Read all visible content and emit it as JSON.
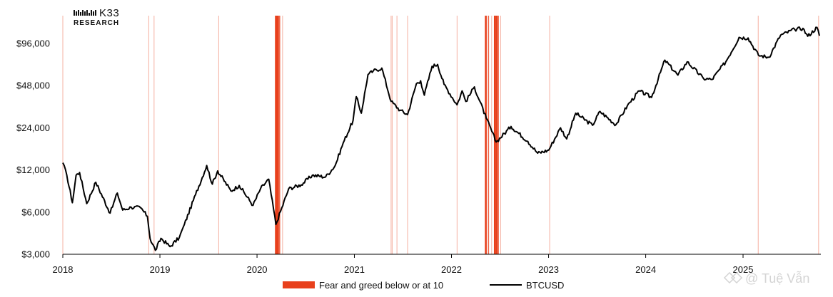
{
  "brand": {
    "name": "K33",
    "subtitle": "RESEARCH"
  },
  "watermark": "@ Tuệ Vẫn",
  "colors": {
    "line": "#000000",
    "fear_band": "#e8401c",
    "fear_band_thin": "#f4a898"
  },
  "chart_data": {
    "type": "line",
    "title": "",
    "xlabel": "",
    "ylabel": "",
    "y_scale": "log2",
    "ylim": [
      3000,
      130000
    ],
    "xlim": [
      "2018-01-01",
      "2025-10-15"
    ],
    "y_ticks": [
      {
        "value": 3000,
        "label": "$3,000"
      },
      {
        "value": 6000,
        "label": "$6,000"
      },
      {
        "value": 12000,
        "label": "$12,000"
      },
      {
        "value": 24000,
        "label": "$24,000"
      },
      {
        "value": 48000,
        "label": "$48,000"
      },
      {
        "value": 96000,
        "label": "$96,000"
      }
    ],
    "x_ticks": [
      {
        "value": "2018-01-01",
        "label": "2018"
      },
      {
        "value": "2019-01-01",
        "label": "2019"
      },
      {
        "value": "2020-01-01",
        "label": "2020"
      },
      {
        "value": "2021-01-01",
        "label": "2021"
      },
      {
        "value": "2022-01-01",
        "label": "2022"
      },
      {
        "value": "2023-01-01",
        "label": "2023"
      },
      {
        "value": "2024-01-01",
        "label": "2024"
      },
      {
        "value": "2025-01-01",
        "label": "2025"
      }
    ],
    "legend": [
      {
        "label": "Fear and greed below or at 10",
        "kind": "bar"
      },
      {
        "label": "BTCUSD",
        "kind": "line"
      }
    ],
    "legend_position": "bottom-center",
    "series": [
      {
        "name": "BTCUSD",
        "points": [
          [
            "2018-01-01",
            13500
          ],
          [
            "2018-01-16",
            11000
          ],
          [
            "2018-02-06",
            7000
          ],
          [
            "2018-02-20",
            11000
          ],
          [
            "2018-03-05",
            11500
          ],
          [
            "2018-04-01",
            6900
          ],
          [
            "2018-05-05",
            9800
          ],
          [
            "2018-06-28",
            5900
          ],
          [
            "2018-07-25",
            8200
          ],
          [
            "2018-08-14",
            6200
          ],
          [
            "2018-09-15",
            6500
          ],
          [
            "2018-10-20",
            6450
          ],
          [
            "2018-11-15",
            5600
          ],
          [
            "2018-11-25",
            3900
          ],
          [
            "2018-12-15",
            3200
          ],
          [
            "2019-01-05",
            3900
          ],
          [
            "2019-02-08",
            3400
          ],
          [
            "2019-03-15",
            3950
          ],
          [
            "2019-04-03",
            4900
          ],
          [
            "2019-05-15",
            8000
          ],
          [
            "2019-06-26",
            12900
          ],
          [
            "2019-07-17",
            9500
          ],
          [
            "2019-08-06",
            11800
          ],
          [
            "2019-09-25",
            8500
          ],
          [
            "2019-10-26",
            9300
          ],
          [
            "2019-12-17",
            6700
          ],
          [
            "2020-01-14",
            8800
          ],
          [
            "2020-02-14",
            10300
          ],
          [
            "2020-03-12",
            4900
          ],
          [
            "2020-04-29",
            8800
          ],
          [
            "2020-06-15",
            9400
          ],
          [
            "2020-07-27",
            11000
          ],
          [
            "2020-09-15",
            10700
          ],
          [
            "2020-10-21",
            12900
          ],
          [
            "2020-11-20",
            18700
          ],
          [
            "2020-12-27",
            27000
          ],
          [
            "2021-01-08",
            40000
          ],
          [
            "2021-01-27",
            30500
          ],
          [
            "2021-02-21",
            57500
          ],
          [
            "2021-03-13",
            61000
          ],
          [
            "2021-04-14",
            64000
          ],
          [
            "2021-05-19",
            37000
          ],
          [
            "2021-06-22",
            32000
          ],
          [
            "2021-07-20",
            29800
          ],
          [
            "2021-08-22",
            49500
          ],
          [
            "2021-09-07",
            52000
          ],
          [
            "2021-09-21",
            41000
          ],
          [
            "2021-10-20",
            66000
          ],
          [
            "2021-11-10",
            68000
          ],
          [
            "2021-12-04",
            49000
          ],
          [
            "2022-01-22",
            35000
          ],
          [
            "2022-02-10",
            44000
          ],
          [
            "2022-02-24",
            37000
          ],
          [
            "2022-03-28",
            47000
          ],
          [
            "2022-05-12",
            28000
          ],
          [
            "2022-06-18",
            19000
          ],
          [
            "2022-08-13",
            24500
          ],
          [
            "2022-10-15",
            19200
          ],
          [
            "2022-11-21",
            15800
          ],
          [
            "2023-01-01",
            16600
          ],
          [
            "2023-02-15",
            24000
          ],
          [
            "2023-03-10",
            20000
          ],
          [
            "2023-04-13",
            30500
          ],
          [
            "2023-06-15",
            25000
          ],
          [
            "2023-07-13",
            31400
          ],
          [
            "2023-09-11",
            25200
          ],
          [
            "2023-10-24",
            34500
          ],
          [
            "2023-12-08",
            44000
          ],
          [
            "2024-01-23",
            39500
          ],
          [
            "2024-03-13",
            73000
          ],
          [
            "2024-05-01",
            57000
          ],
          [
            "2024-06-05",
            71000
          ],
          [
            "2024-08-05",
            54000
          ],
          [
            "2024-09-06",
            53000
          ],
          [
            "2024-10-28",
            71000
          ],
          [
            "2024-12-17",
            106000
          ],
          [
            "2025-01-20",
            105000
          ],
          [
            "2025-02-28",
            79000
          ],
          [
            "2025-04-08",
            76500
          ],
          [
            "2025-05-22",
            110000
          ],
          [
            "2025-07-14",
            121000
          ],
          [
            "2025-08-14",
            123000
          ],
          [
            "2025-09-01",
            108000
          ],
          [
            "2025-10-06",
            125000
          ],
          [
            "2025-10-15",
            109000
          ]
        ]
      }
    ],
    "fear_greed_bands": [
      {
        "date": "2018-01-01",
        "intensity": "light"
      },
      {
        "date": "2018-11-20",
        "intensity": "light"
      },
      {
        "date": "2018-12-10",
        "intensity": "light"
      },
      {
        "date": "2019-08-10",
        "intensity": "light"
      },
      {
        "date": "2020-03-12",
        "intensity": "strong"
      },
      {
        "date": "2020-03-16",
        "intensity": "strong"
      },
      {
        "date": "2020-03-20",
        "intensity": "strong"
      },
      {
        "date": "2020-03-26",
        "intensity": "medium"
      },
      {
        "date": "2020-04-06",
        "intensity": "light"
      },
      {
        "date": "2021-05-19",
        "intensity": "light"
      },
      {
        "date": "2021-05-23",
        "intensity": "light"
      },
      {
        "date": "2021-06-10",
        "intensity": "light"
      },
      {
        "date": "2021-07-20",
        "intensity": "light"
      },
      {
        "date": "2022-01-22",
        "intensity": "light"
      },
      {
        "date": "2022-05-10",
        "intensity": "strong"
      },
      {
        "date": "2022-05-20",
        "intensity": "medium"
      },
      {
        "date": "2022-06-01",
        "intensity": "light"
      },
      {
        "date": "2022-06-13",
        "intensity": "strong"
      },
      {
        "date": "2022-06-20",
        "intensity": "strong"
      },
      {
        "date": "2022-06-26",
        "intensity": "medium"
      },
      {
        "date": "2022-07-05",
        "intensity": "light"
      },
      {
        "date": "2023-01-05",
        "intensity": "light"
      },
      {
        "date": "2025-02-27",
        "intensity": "light"
      },
      {
        "date": "2025-10-12",
        "intensity": "light"
      }
    ]
  }
}
